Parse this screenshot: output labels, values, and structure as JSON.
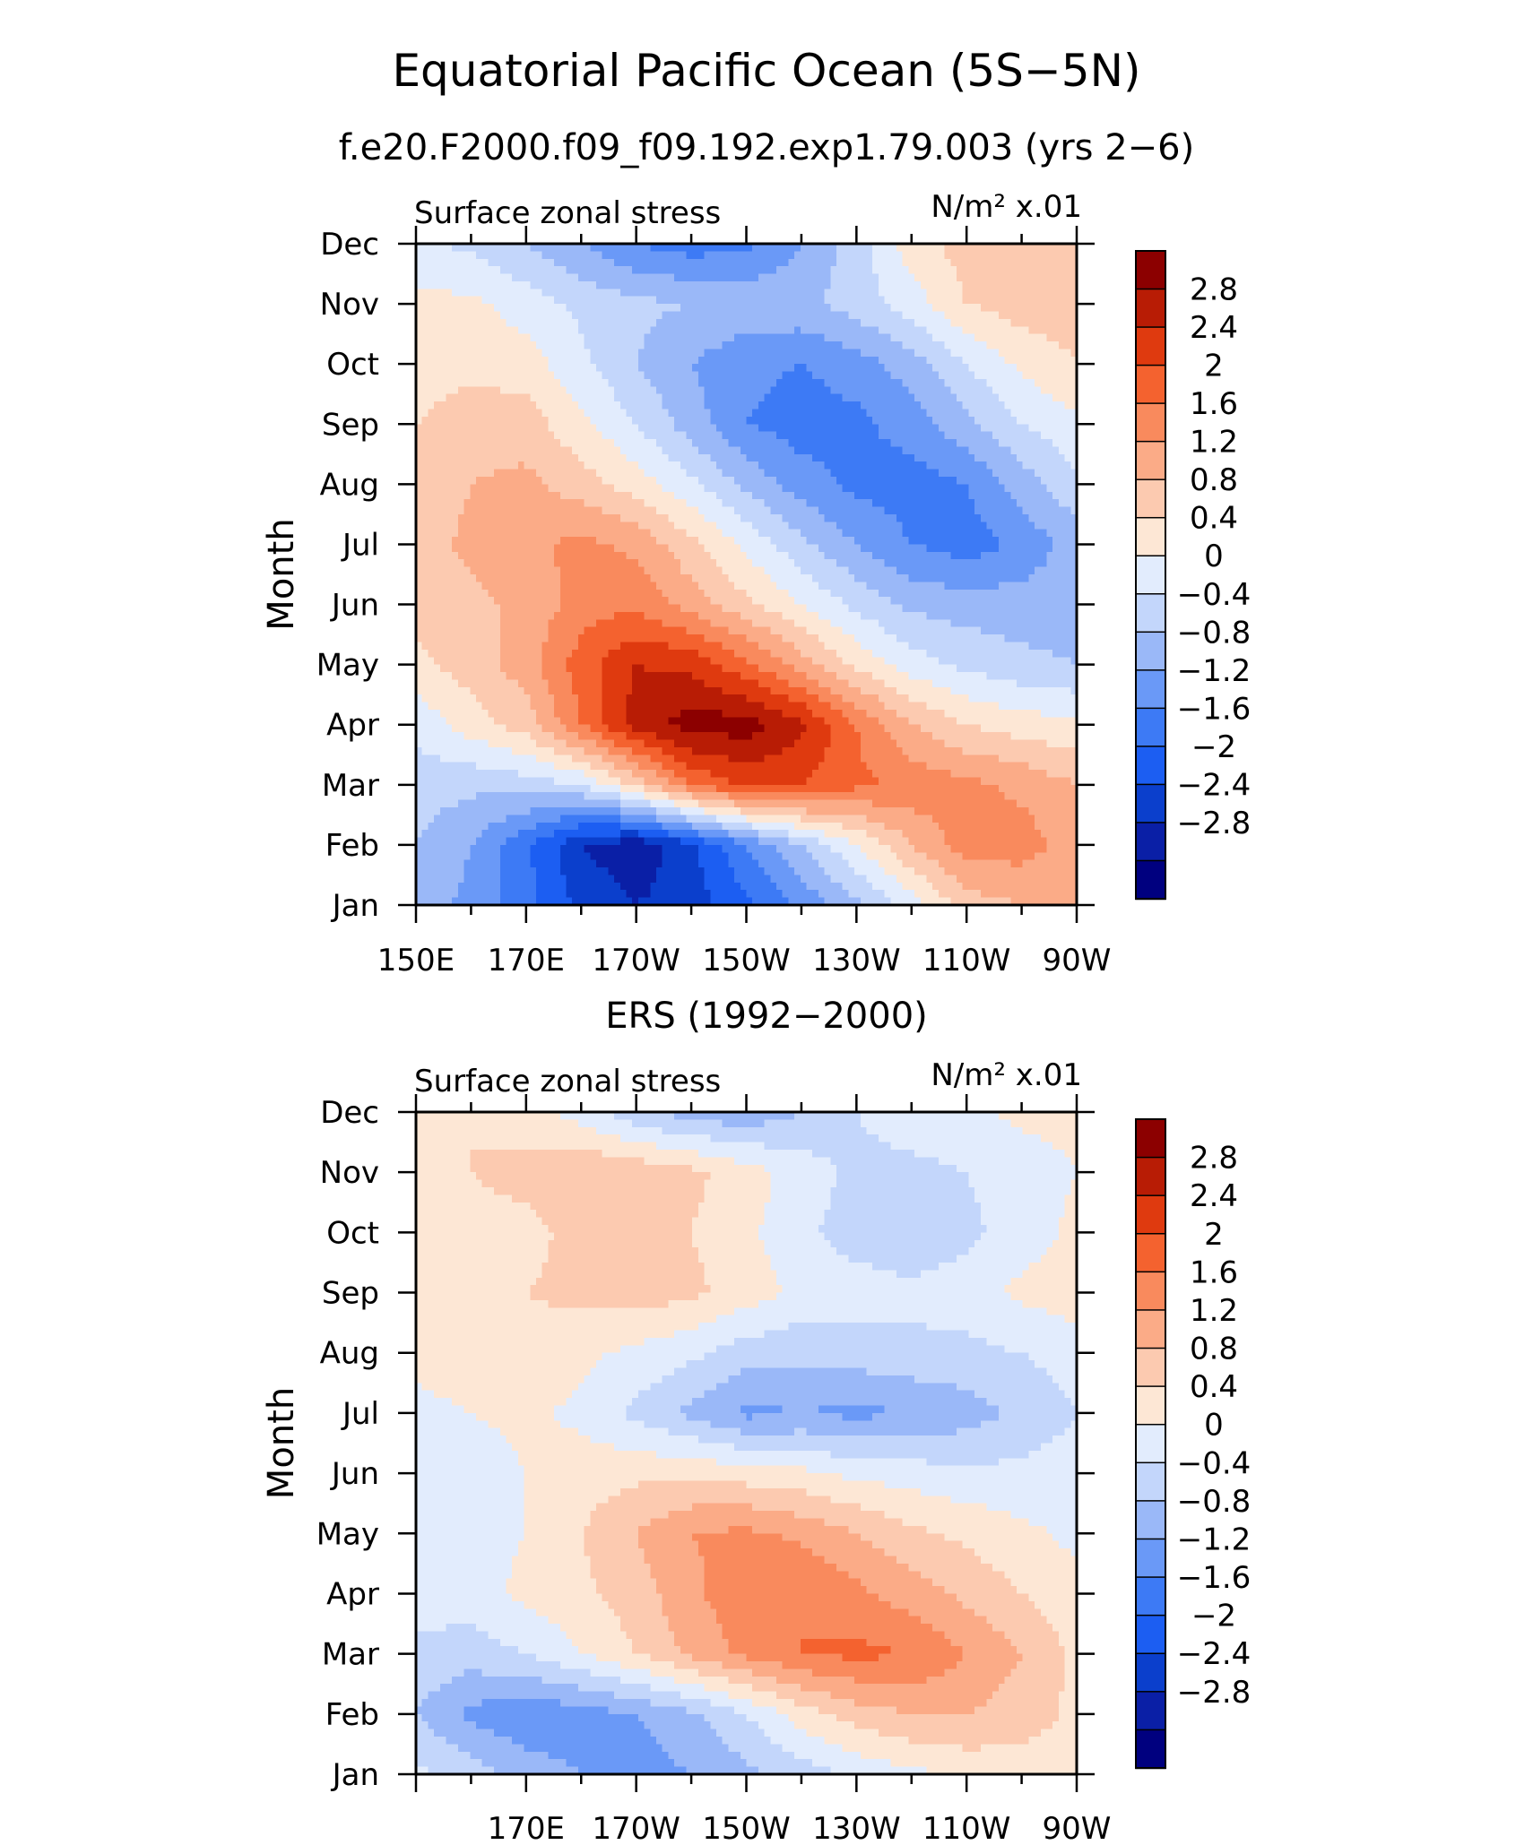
{
  "figure": {
    "title": "Equatorial Pacific Ocean (5S−5N)"
  },
  "palette": {
    "colors": [
      "#00007f",
      "#0a1fa6",
      "#0b3fcc",
      "#1c5ef2",
      "#3d7af5",
      "#6a99f7",
      "#9ab8f8",
      "#c3d6fb",
      "#e2ecfd",
      "#fde7d5",
      "#fccab0",
      "#fbab87",
      "#f98a5d",
      "#f4622f",
      "#df3a0f",
      "#b81c05",
      "#8c0000"
    ]
  },
  "chart_data": [
    {
      "type": "heatmap",
      "panel_title": "f.e20.F2000.f09_f09.192.exp1.79.003 (yrs 2−6)",
      "left_label": "Surface zonal stress",
      "right_label": "N/m² x.01",
      "ylabel": "Month",
      "x_tick_labels": [
        "150E",
        "170E",
        "170W",
        "150W",
        "130W",
        "110W",
        "90W"
      ],
      "y_tick_labels": [
        "Jan",
        "Feb",
        "Mar",
        "Apr",
        "May",
        "Jun",
        "Jul",
        "Aug",
        "Sep",
        "Oct",
        "Nov",
        "Dec"
      ],
      "colorbar_labels": [
        "2.8",
        "2.4",
        "2",
        "1.6",
        "1.2",
        "0.8",
        "0.4",
        "0",
        "−0.4",
        "−0.8",
        "−1.2",
        "−1.6",
        "−2",
        "−2.4",
        "−2.8"
      ],
      "levels": [
        -3.2,
        -2.8,
        -2.4,
        -2,
        -1.6,
        -1.2,
        -0.8,
        -0.4,
        0,
        0.4,
        0.8,
        1.2,
        1.6,
        2,
        2.4,
        2.8
      ],
      "lon_range": [
        150,
        270
      ],
      "month_range": [
        1,
        12
      ],
      "grid_lon": [
        150,
        160,
        170,
        180,
        190,
        200,
        210,
        220,
        230,
        240,
        250,
        260,
        270
      ],
      "grid_month": [
        1,
        2,
        3,
        4,
        5,
        6,
        7,
        8,
        9,
        10,
        11,
        12
      ],
      "values": [
        [
          -1.0,
          -1.3,
          -1.9,
          -2.5,
          -2.8,
          -2.6,
          -2.1,
          -1.5,
          -0.9,
          -0.2,
          0.6,
          0.8,
          0.8
        ],
        [
          -0.8,
          -1.2,
          -1.9,
          -2.8,
          -3.1,
          -2.5,
          -1.6,
          -0.8,
          0,
          0.8,
          1.4,
          1.4,
          1.0
        ],
        [
          -0.6,
          -0.7,
          -0.6,
          -0.4,
          0.5,
          1.6,
          2.1,
          2.0,
          1.7,
          1.5,
          1.3,
          1.1,
          0.8
        ],
        [
          -0.3,
          0.2,
          0.6,
          1.6,
          2.6,
          3.0,
          3.0,
          2.5,
          1.6,
          0.8,
          0.4,
          0.2,
          0.1
        ],
        [
          0.3,
          0.6,
          1.0,
          1.8,
          2.4,
          2.3,
          1.7,
          1.0,
          0.3,
          -0.2,
          -0.5,
          -0.7,
          -0.8
        ],
        [
          0.5,
          0.7,
          0.9,
          1.4,
          1.5,
          1.0,
          0.5,
          0,
          -0.5,
          -0.9,
          -1.0,
          -1.0,
          -1.0
        ],
        [
          0.6,
          0.9,
          1.1,
          1.3,
          1.1,
          0.5,
          -0.1,
          -0.7,
          -1.2,
          -1.6,
          -1.8,
          -1.5,
          -1.0
        ],
        [
          0.5,
          0.8,
          0.9,
          0.6,
          0.2,
          -0.3,
          -0.9,
          -1.4,
          -1.7,
          -1.8,
          -1.6,
          -1.0,
          -0.5
        ],
        [
          0.4,
          0.6,
          0.6,
          0.1,
          -0.4,
          -1.0,
          -1.6,
          -1.8,
          -1.7,
          -1.4,
          -0.9,
          -0.4,
          -0.1
        ],
        [
          0.2,
          0.3,
          0.2,
          -0.3,
          -0.8,
          -1.2,
          -1.5,
          -1.6,
          -1.4,
          -1.0,
          -0.4,
          0.1,
          0.4
        ],
        [
          0.1,
          0.1,
          -0.2,
          -0.5,
          -0.7,
          -0.8,
          -0.9,
          -0.9,
          -0.6,
          -0.2,
          0.4,
          0.6,
          0.6
        ],
        [
          -0.3,
          -0.5,
          -0.8,
          -1.2,
          -1.6,
          -1.8,
          -1.7,
          -1.2,
          -0.6,
          0.2,
          0.6,
          0.8,
          0.6
        ]
      ]
    },
    {
      "type": "heatmap",
      "panel_title": "ERS (1992−2000)",
      "left_label": "Surface zonal stress",
      "right_label": "N/m² x.01",
      "ylabel": "Month",
      "x_tick_labels": [
        "170E",
        "170W",
        "150W",
        "130W",
        "110W",
        "90W"
      ],
      "y_tick_labels": [
        "Jan",
        "Feb",
        "Mar",
        "Apr",
        "May",
        "Jun",
        "Jul",
        "Aug",
        "Sep",
        "Oct",
        "Nov",
        "Dec"
      ],
      "colorbar_labels": [
        "2.8",
        "2.4",
        "2",
        "1.6",
        "1.2",
        "0.8",
        "0.4",
        "0",
        "−0.4",
        "−0.8",
        "−1.2",
        "−1.6",
        "−2",
        "−2.4",
        "−2.8"
      ],
      "levels": [
        -3.2,
        -2.8,
        -2.4,
        -2,
        -1.6,
        -1.2,
        -0.8,
        -0.4,
        0,
        0.4,
        0.8,
        1.2,
        1.6,
        2,
        2.4,
        2.8
      ],
      "lon_range": [
        150,
        270
      ],
      "month_range": [
        1,
        12
      ],
      "grid_lon": [
        150,
        160,
        170,
        180,
        190,
        200,
        210,
        220,
        230,
        240,
        250,
        260,
        270
      ],
      "grid_month": [
        1,
        2,
        3,
        4,
        5,
        6,
        7,
        8,
        9,
        10,
        11,
        12
      ],
      "values": [
        [
          -0.3,
          -0.6,
          -1.0,
          -1.2,
          -1.4,
          -1.2,
          -0.9,
          -0.6,
          -0.3,
          -0.1,
          0.1,
          0.2,
          0.2
        ],
        [
          -0.8,
          -1.3,
          -1.5,
          -1.4,
          -1.2,
          -0.9,
          -0.4,
          0.2,
          0.6,
          0.8,
          0.8,
          0.6,
          0.3
        ],
        [
          -0.5,
          -0.6,
          -0.4,
          0,
          0.4,
          0.9,
          1.3,
          1.6,
          1.7,
          1.6,
          1.2,
          0.8,
          0.3
        ],
        [
          -0.2,
          -0.2,
          0.1,
          0.3,
          0.6,
          1.1,
          1.5,
          1.6,
          1.3,
          1.0,
          0.7,
          0.4,
          0.1
        ],
        [
          -0.1,
          -0.1,
          0,
          0.4,
          0.8,
          1.2,
          1.3,
          1.1,
          0.8,
          0.5,
          0.3,
          0.1,
          -0.1
        ],
        [
          -0.4,
          -0.2,
          0,
          0.2,
          0.3,
          0.3,
          0.2,
          0.1,
          -0.1,
          -0.2,
          -0.3,
          -0.3,
          -0.2
        ],
        [
          -0.1,
          0,
          0.1,
          -0.1,
          -0.5,
          -0.9,
          -1.3,
          -1.2,
          -1.3,
          -1.2,
          -1.0,
          -0.7,
          -0.4
        ],
        [
          0.1,
          0.2,
          0.3,
          0.1,
          -0.1,
          -0.3,
          -0.6,
          -0.7,
          -0.6,
          -0.5,
          -0.5,
          -0.4,
          -0.2
        ],
        [
          0.1,
          0.3,
          0.4,
          0.5,
          0.6,
          0.5,
          0.2,
          -0.1,
          -0.2,
          -0.3,
          -0.2,
          0.1,
          0.2
        ],
        [
          0.2,
          0.3,
          0.3,
          0.5,
          0.6,
          0.4,
          0.1,
          -0.3,
          -0.6,
          -0.7,
          -0.5,
          -0.2,
          0.1
        ],
        [
          0.3,
          0.4,
          0.5,
          0.8,
          0.7,
          0.5,
          0.2,
          -0.2,
          -0.5,
          -0.5,
          -0.4,
          -0.2,
          0
        ],
        [
          0.3,
          0.4,
          0.2,
          -0.2,
          -0.7,
          -1.0,
          -1.1,
          -0.8,
          -0.4,
          -0.2,
          -0.1,
          0.1,
          0.1
        ]
      ]
    }
  ]
}
